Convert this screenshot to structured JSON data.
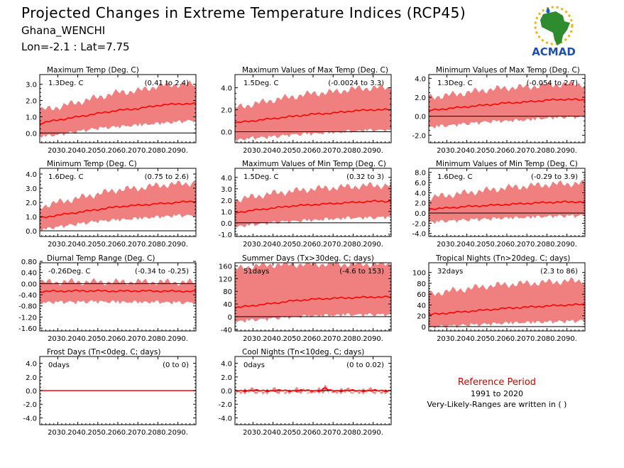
{
  "header": {
    "title": "Projected Changes in Extreme Temperature Indices (RCP45)",
    "location": "Ghana_WENCHI",
    "coords": "Lon=-2.1 : Lat=7.75"
  },
  "logo": {
    "text": "ACMAD",
    "icon": "acmad-africa-logo"
  },
  "reference": {
    "title": "Reference Period",
    "years": "1991 to 2020",
    "note": "Very-Likely-Ranges are written in ( )"
  },
  "colors": {
    "band": "#f08080",
    "line": "#ff0000",
    "zero": "#000000"
  },
  "chart_data": [
    {
      "type": "area",
      "title": "Maximum Temp (Deg. C)",
      "mean_label": "1.3Deg. C",
      "range_label": "(0.41 to 2.4)",
      "ylim": [
        -0.6,
        3.6
      ],
      "yticks": [
        0.0,
        1.0,
        2.0,
        3.0
      ],
      "yticklabels": [
        "0.0",
        "1.0",
        "2.0",
        "3.0"
      ],
      "xticklabels": [
        "2030.",
        "2040.",
        "2050.",
        "2060.",
        "2070.",
        "2080.",
        "2090."
      ],
      "series": [
        {
          "name": "",
          "x": [
            2021,
            2030,
            2040,
            2050,
            2060,
            2070,
            2080,
            2090,
            2099
          ],
          "mean": [
            0.6,
            0.8,
            1.0,
            1.2,
            1.4,
            1.5,
            1.7,
            1.8,
            1.8
          ],
          "low": [
            -0.1,
            0.0,
            0.2,
            0.4,
            0.5,
            0.6,
            0.7,
            0.8,
            0.9
          ],
          "high": [
            1.4,
            1.6,
            1.9,
            2.2,
            2.5,
            2.6,
            2.9,
            3.0,
            3.0
          ]
        }
      ]
    },
    {
      "type": "area",
      "title": "Maximum Values of Max Temp (Deg. C)",
      "mean_label": "1.5Deg. C",
      "range_label": "(-0.0024 to 3.3)",
      "ylim": [
        -1.0,
        5.2
      ],
      "yticks": [
        0.0,
        2.0,
        4.0
      ],
      "yticklabels": [
        "0.0",
        "2.0",
        "4.0"
      ],
      "xticklabels": [
        "2030.",
        "2040.",
        "2050.",
        "2060.",
        "2070.",
        "2080.",
        "2090."
      ],
      "series": [
        {
          "name": "",
          "x": [
            2021,
            2030,
            2040,
            2050,
            2060,
            2070,
            2080,
            2090,
            2099
          ],
          "mean": [
            0.8,
            1.0,
            1.2,
            1.4,
            1.6,
            1.7,
            1.9,
            2.0,
            2.0
          ],
          "low": [
            -0.6,
            -0.4,
            -0.3,
            -0.1,
            0.0,
            0.1,
            0.2,
            0.3,
            0.3
          ],
          "high": [
            2.2,
            2.5,
            2.9,
            3.2,
            3.5,
            3.6,
            3.9,
            4.0,
            4.0
          ]
        }
      ]
    },
    {
      "type": "area",
      "title": "Minimum Values of Max Temp (Deg. C)",
      "mean_label": "1.3Deg. C",
      "range_label": "(-0.054 to 2.7)",
      "ylim": [
        -2.8,
        4.4
      ],
      "yticks": [
        -2.0,
        0.0,
        2.0,
        4.0
      ],
      "yticklabels": [
        "-2.0",
        "0.0",
        "2.0",
        "4.0"
      ],
      "xticklabels": [
        "2030.",
        "2040.",
        "2050.",
        "2060.",
        "2070.",
        "2080.",
        "2090."
      ],
      "series": [
        {
          "name": "",
          "x": [
            2021,
            2030,
            2040,
            2050,
            2060,
            2070,
            2080,
            2090,
            2099
          ],
          "mean": [
            0.6,
            0.8,
            1.0,
            1.2,
            1.4,
            1.5,
            1.7,
            1.8,
            1.7
          ],
          "low": [
            -1.0,
            -0.8,
            -0.6,
            -0.4,
            -0.3,
            -0.2,
            0.0,
            0.1,
            0.1
          ],
          "high": [
            2.0,
            2.2,
            2.5,
            2.8,
            3.0,
            3.1,
            3.3,
            3.4,
            3.4
          ]
        }
      ]
    },
    {
      "type": "area",
      "title": "Minimum Temp (Deg. C)",
      "mean_label": "1.6Deg. C",
      "range_label": "(0.75 to 2.6)",
      "ylim": [
        -0.4,
        4.4
      ],
      "yticks": [
        0.0,
        1.0,
        2.0,
        3.0,
        4.0
      ],
      "yticklabels": [
        "0.0",
        "1.0",
        "2.0",
        "3.0",
        "4.0"
      ],
      "xticklabels": [
        "2030.",
        "2040.",
        "2050.",
        "2060.",
        "2070.",
        "2080.",
        "2090."
      ],
      "series": [
        {
          "name": "",
          "x": [
            2021,
            2030,
            2040,
            2050,
            2060,
            2070,
            2080,
            2090,
            2099
          ],
          "mean": [
            0.9,
            1.1,
            1.3,
            1.5,
            1.7,
            1.8,
            1.9,
            2.0,
            2.1
          ],
          "low": [
            0.2,
            0.4,
            0.6,
            0.8,
            0.9,
            1.0,
            1.1,
            1.2,
            1.2
          ],
          "high": [
            1.7,
            2.0,
            2.3,
            2.6,
            2.9,
            3.0,
            3.2,
            3.3,
            3.4
          ]
        }
      ]
    },
    {
      "type": "area",
      "title": "Maximum Values of Min Temp (Deg. C)",
      "mean_label": "1.5Deg. C",
      "range_label": "(0.32 to 3)",
      "ylim": [
        -1.2,
        4.8
      ],
      "yticks": [
        -1.0,
        0.0,
        1.0,
        2.0,
        3.0,
        4.0
      ],
      "yticklabels": [
        "-1.0",
        "0.0",
        "1.0",
        "2.0",
        "3.0",
        "4.0"
      ],
      "xticklabels": [
        "2030.",
        "2040.",
        "2050.",
        "2060.",
        "2070.",
        "2080.",
        "2090."
      ],
      "series": [
        {
          "name": "",
          "x": [
            2021,
            2030,
            2040,
            2050,
            2060,
            2070,
            2080,
            2090,
            2099
          ],
          "mean": [
            0.9,
            1.1,
            1.3,
            1.5,
            1.6,
            1.7,
            1.8,
            1.9,
            1.9
          ],
          "low": [
            -0.2,
            0.0,
            0.2,
            0.3,
            0.4,
            0.5,
            0.6,
            0.6,
            0.7
          ],
          "high": [
            2.0,
            2.3,
            2.6,
            2.8,
            3.0,
            3.1,
            3.2,
            3.3,
            3.3
          ]
        }
      ]
    },
    {
      "type": "area",
      "title": "Minimum Values of Min Temp (Deg. C)",
      "mean_label": "1.6Deg. C",
      "range_label": "(-0.29 to 3.9)",
      "ylim": [
        -4.6,
        8.8
      ],
      "yticks": [
        -4.0,
        -2.0,
        0.0,
        2.0,
        4.0,
        6.0,
        8.0
      ],
      "yticklabels": [
        "-4.0",
        "-2.0",
        "0.0",
        "2.0",
        "4.0",
        "6.0",
        "8.0"
      ],
      "xticklabels": [
        "2030.",
        "2040.",
        "2050.",
        "2060.",
        "2070.",
        "2080.",
        "2090."
      ],
      "series": [
        {
          "name": "",
          "x": [
            2021,
            2030,
            2040,
            2050,
            2060,
            2070,
            2080,
            2090,
            2099
          ],
          "mean": [
            0.8,
            1.0,
            1.3,
            1.5,
            1.7,
            1.9,
            2.1,
            2.2,
            2.2
          ],
          "low": [
            -1.5,
            -1.2,
            -1.0,
            -0.8,
            -0.6,
            -0.5,
            -0.3,
            -0.2,
            -0.2
          ],
          "high": [
            3.0,
            3.5,
            4.0,
            4.5,
            5.0,
            5.3,
            5.6,
            5.8,
            5.8
          ]
        }
      ]
    },
    {
      "type": "area",
      "title": "Diurnal Temp Range (Deg. C)",
      "mean_label": "-0.26Deg. C",
      "range_label": "(-0.34 to -0.25)",
      "ylim": [
        -1.7,
        0.75
      ],
      "yticks": [
        -1.6,
        -1.2,
        -0.8,
        -0.4,
        0.0,
        0.4,
        0.8
      ],
      "yticklabels": [
        "-1.60",
        "-1.20",
        "-0.80",
        "-0.40",
        "0.00",
        "0.40",
        "0.80"
      ],
      "xticklabels": [
        "2030.",
        "2040.",
        "2050.",
        "2060.",
        "2070.",
        "2080.",
        "2090."
      ],
      "series": [
        {
          "name": "",
          "x": [
            2021,
            2030,
            2040,
            2050,
            2060,
            2070,
            2080,
            2090,
            2099
          ],
          "mean": [
            -0.28,
            -0.27,
            -0.26,
            -0.26,
            -0.27,
            -0.26,
            -0.27,
            -0.27,
            -0.28
          ],
          "low": [
            -0.62,
            -0.6,
            -0.6,
            -0.58,
            -0.6,
            -0.6,
            -0.6,
            -0.62,
            -0.62
          ],
          "high": [
            0.05,
            0.06,
            0.07,
            0.06,
            0.06,
            0.07,
            0.06,
            0.05,
            0.05
          ]
        }
      ]
    },
    {
      "type": "area",
      "title": "Summer Days (Tx>30deg. C; days)",
      "mean_label": "51days",
      "range_label": "(-4.6 to 153)",
      "ylim": [
        -45,
        170
      ],
      "yticks": [
        -40,
        0,
        40,
        80,
        120,
        160
      ],
      "yticklabels": [
        "-40",
        "0",
        "40",
        "80",
        "120",
        "160"
      ],
      "xticklabels": [
        "2030.",
        "2040.",
        "2050.",
        "2060.",
        "2070.",
        "2080.",
        "2090."
      ],
      "series": [
        {
          "name": "",
          "x": [
            2021,
            2030,
            2040,
            2050,
            2060,
            2070,
            2080,
            2090,
            2099
          ],
          "mean": [
            28,
            35,
            42,
            50,
            55,
            58,
            60,
            62,
            62
          ],
          "low": [
            -10,
            -5,
            0,
            5,
            8,
            10,
            12,
            12,
            12
          ],
          "high": [
            150,
            160,
            164,
            165,
            166,
            166,
            166,
            166,
            166
          ]
        }
      ]
    },
    {
      "type": "area",
      "title": "Tropical Nights (Tn>20deg. C; days)",
      "mean_label": "32days",
      "range_label": "(2.3 to 86)",
      "ylim": [
        -8,
        118
      ],
      "yticks": [
        0,
        20,
        40,
        60,
        80,
        100
      ],
      "yticklabels": [
        "0",
        "20",
        "40",
        "60",
        "80",
        "100"
      ],
      "xticklabels": [
        "2030.",
        "2040.",
        "2050.",
        "2060.",
        "2070.",
        "2080.",
        "2090."
      ],
      "series": [
        {
          "name": "",
          "x": [
            2021,
            2030,
            2040,
            2050,
            2060,
            2070,
            2080,
            2090,
            2099
          ],
          "mean": [
            22,
            25,
            28,
            31,
            34,
            36,
            38,
            40,
            41
          ],
          "low": [
            2,
            4,
            6,
            8,
            10,
            11,
            12,
            13,
            14
          ],
          "high": [
            60,
            65,
            70,
            75,
            78,
            80,
            82,
            84,
            85
          ]
        }
      ]
    },
    {
      "type": "area",
      "title": "Frost Days (Tn<0deg. C; days)",
      "mean_label": "0days",
      "range_label": "(0 to 0)",
      "ylim": [
        -5.0,
        5.0
      ],
      "yticks": [
        -4.0,
        -2.0,
        0.0,
        2.0,
        4.0
      ],
      "yticklabels": [
        "-4.0",
        "-2.0",
        "0.0",
        "2.0",
        "4.0"
      ],
      "xticklabels": [
        "2030.",
        "2040.",
        "2050.",
        "2060.",
        "2070.",
        "2080.",
        "2090."
      ],
      "series": [
        {
          "name": "",
          "x": [
            2021,
            2099
          ],
          "mean": [
            0,
            0
          ],
          "low": [
            0,
            0
          ],
          "high": [
            0,
            0
          ]
        }
      ]
    },
    {
      "type": "area",
      "title": "Cool Nights (Tn<10deg. C; days)",
      "mean_label": "0days",
      "range_label": "(0 to 0.02)",
      "ylim": [
        -5.0,
        5.0
      ],
      "yticks": [
        -4.0,
        -2.0,
        0.0,
        2.0,
        4.0
      ],
      "yticklabels": [
        "-4.0",
        "-2.0",
        "0.0",
        "2.0",
        "4.0"
      ],
      "xticklabels": [
        "2030.",
        "2040.",
        "2050.",
        "2060.",
        "2070.",
        "2080.",
        "2090."
      ],
      "series": [
        {
          "name": "",
          "x": [
            2021,
            2064,
            2066,
            2068,
            2099
          ],
          "mean": [
            0,
            0,
            0.4,
            0,
            0
          ],
          "low": [
            0,
            0,
            0,
            0,
            0
          ],
          "high": [
            0,
            0,
            0.5,
            0,
            0
          ]
        }
      ]
    }
  ]
}
